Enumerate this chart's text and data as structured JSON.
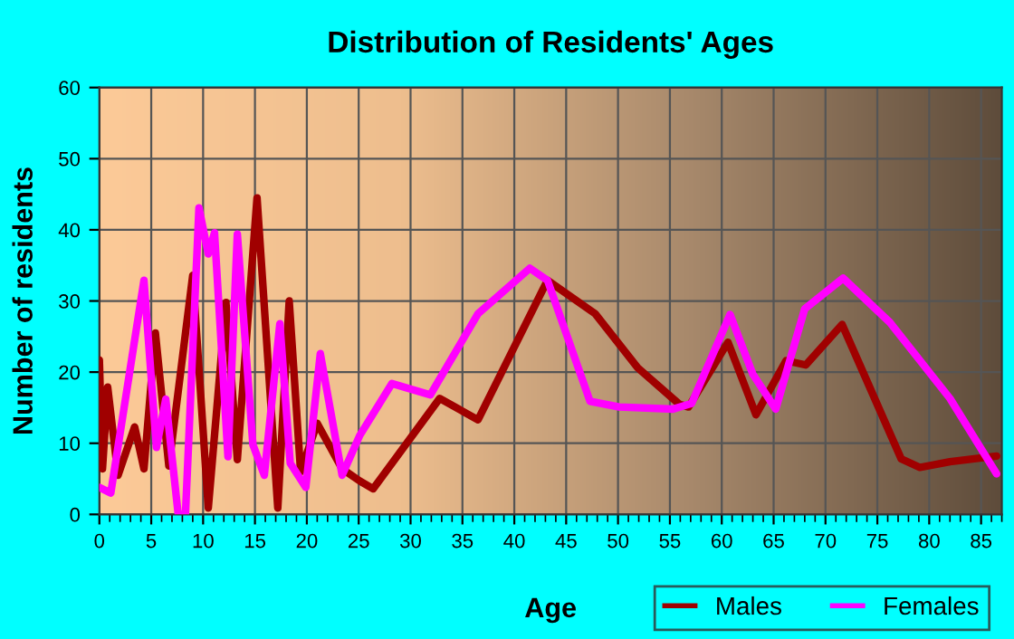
{
  "chart_data": {
    "type": "line",
    "title": "Distribution of Residents' Ages",
    "xlabel": "Age",
    "ylabel": "Number of residents",
    "xlim": [
      0,
      87
    ],
    "xticks": [
      0,
      5,
      10,
      15,
      20,
      25,
      30,
      35,
      40,
      45,
      50,
      55,
      60,
      65,
      70,
      75,
      80,
      85
    ],
    "ylim": [
      0,
      60
    ],
    "yticks": [
      0,
      10,
      20,
      30,
      40,
      50,
      60
    ],
    "grid": true,
    "legend": "bottom right",
    "marker": "none",
    "line_style": "solid",
    "series": [
      {
        "name": "Males",
        "color": "#a00000",
        "x": [
          0,
          0.3,
          0.8,
          1.8,
          3.4,
          4.3,
          5.4,
          6.7,
          9.0,
          10.5,
          12.2,
          13.3,
          15.2,
          17.2,
          18.3,
          19.4,
          21.0,
          23.4,
          25.1,
          26.4,
          32.8,
          36.5,
          43.2,
          47.8,
          51.9,
          55.9,
          56.8,
          60.6,
          63.3,
          66.2,
          68.1,
          71.6,
          77.3,
          79.1,
          82.0,
          86.5
        ],
        "values": [
          21.7,
          6.4,
          17.9,
          5.5,
          12.3,
          6.4,
          25.5,
          6.8,
          33.6,
          0.9,
          29.8,
          7.7,
          44.5,
          0.9,
          30.0,
          6.0,
          12.8,
          6.4,
          4.7,
          3.6,
          16.3,
          13.3,
          32.9,
          28.2,
          20.6,
          15.5,
          15.1,
          24.2,
          14.0,
          21.6,
          21.0,
          26.7,
          7.8,
          6.6,
          7.4,
          8.2
        ]
      },
      {
        "name": "Females",
        "color": "#ff00ff",
        "x": [
          0,
          1.1,
          4.3,
          5.5,
          6.4,
          7.6,
          8.3,
          9.6,
          10.5,
          11.1,
          12.4,
          13.3,
          14.8,
          15.9,
          17.4,
          18.4,
          19.9,
          21.3,
          23.4,
          25.1,
          28.2,
          31.9,
          36.5,
          41.5,
          43.2,
          47.3,
          50.1,
          55.3,
          57.1,
          60.8,
          63.0,
          65.2,
          68.0,
          71.7,
          76.2,
          82.0,
          86.5
        ],
        "values": [
          3.8,
          3.0,
          32.9,
          9.4,
          16.2,
          0,
          0,
          43.1,
          36.6,
          39.6,
          8.1,
          39.4,
          9.8,
          5.5,
          26.8,
          7.2,
          3.8,
          22.6,
          5.5,
          11.1,
          18.4,
          16.8,
          28.2,
          34.6,
          32.9,
          15.9,
          15.1,
          14.8,
          15.6,
          28.1,
          19.7,
          14.8,
          28.9,
          33.2,
          27.0,
          16.3,
          5.7
        ]
      }
    ]
  }
}
